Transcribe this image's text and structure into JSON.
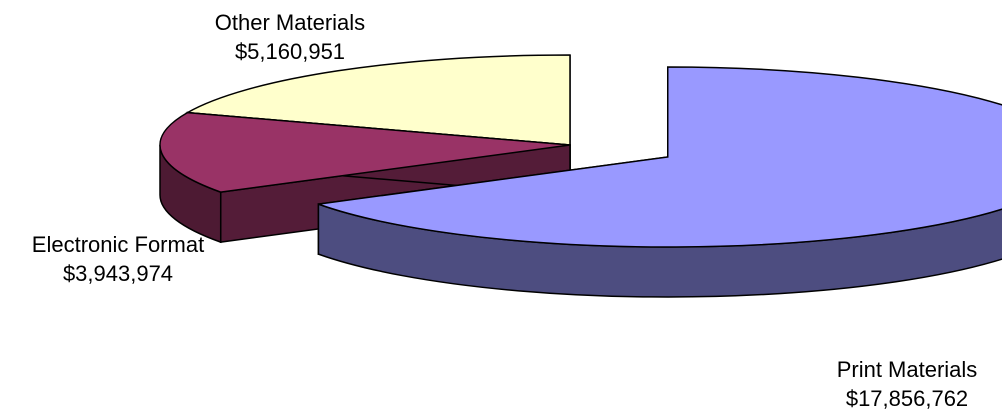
{
  "chart_data": {
    "type": "pie",
    "style": "3d-exploded",
    "slices": [
      {
        "label": "Print Materials",
        "value": 17856762,
        "value_label": "$17,856,762",
        "color": "#9999ff"
      },
      {
        "label": "Electronic Format",
        "value": 3943974,
        "value_label": "$3,943,974",
        "color": "#993366"
      },
      {
        "label": "Other Materials",
        "value": 5160951,
        "value_label": "$5,160,951",
        "color": "#ffffcc"
      }
    ],
    "legend": "none"
  }
}
